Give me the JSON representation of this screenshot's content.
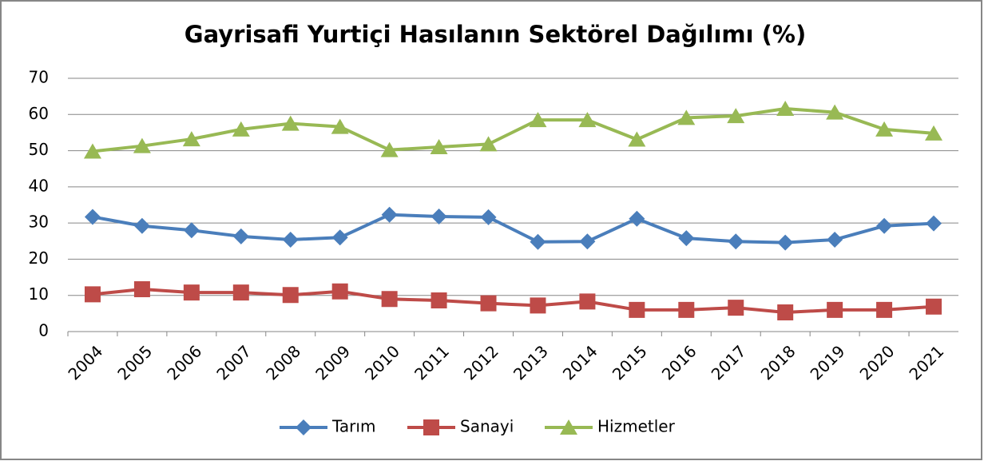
{
  "chart_data": {
    "type": "line",
    "title": "Gayrisafi Yurtiçi Hasılanın Sektörel Dağılımı (%)",
    "categories": [
      "2004",
      "2005",
      "2006",
      "2007",
      "2008",
      "2009",
      "2010",
      "2011",
      "2012",
      "2013",
      "2014",
      "2015",
      "2016",
      "2017",
      "2018",
      "2019",
      "2020",
      "2021"
    ],
    "series": [
      {
        "name": "Tarım",
        "color": "#4a7ebb",
        "marker": "diamond",
        "values": [
          31.7,
          29.2,
          28.0,
          26.3,
          25.4,
          26.0,
          32.3,
          31.8,
          31.6,
          24.8,
          24.9,
          31.2,
          25.8,
          24.9,
          24.6,
          25.4,
          29.2,
          29.9
        ]
      },
      {
        "name": "Sanayi",
        "color": "#be4b48",
        "marker": "square",
        "values": [
          10.3,
          11.7,
          10.8,
          10.8,
          10.1,
          11.1,
          9.0,
          8.6,
          7.8,
          7.2,
          8.3,
          6.0,
          6.0,
          6.6,
          5.3,
          6.0,
          6.0,
          6.9
        ]
      },
      {
        "name": "Hizmetler",
        "color": "#98b954",
        "marker": "triangle",
        "values": [
          49.8,
          51.3,
          53.2,
          55.9,
          57.5,
          56.6,
          50.2,
          51.0,
          51.8,
          58.5,
          58.5,
          53.1,
          59.1,
          59.6,
          61.6,
          60.6,
          55.9,
          54.8
        ]
      }
    ],
    "ylim": [
      0,
      70
    ],
    "yticks": [
      0,
      10,
      20,
      30,
      40,
      50,
      60,
      70
    ],
    "grid": true,
    "legend": "bottom"
  }
}
